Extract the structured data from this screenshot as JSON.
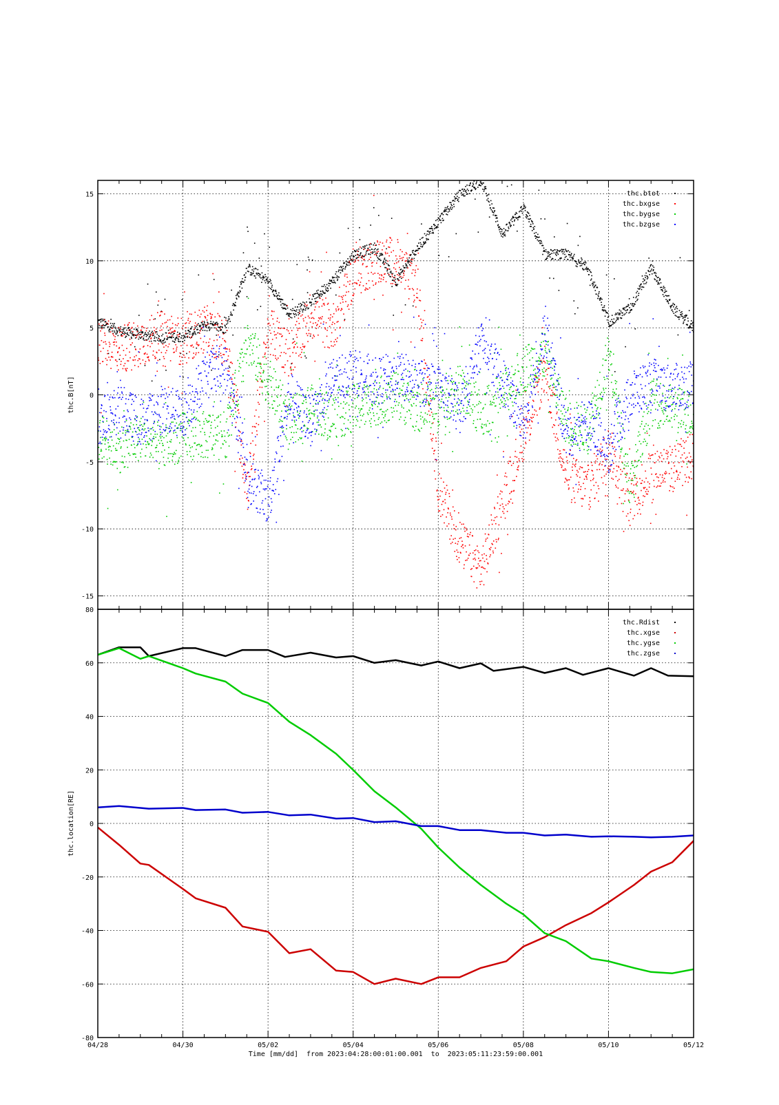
{
  "chart_data": [
    {
      "type": "scatter",
      "title": "",
      "ylabel": "thc.B[nT]",
      "xlabel": "",
      "ylim": [
        -16,
        16
      ],
      "yticks": [
        15,
        10,
        5,
        0,
        -5,
        -10,
        -15
      ],
      "xlim_day": [
        0,
        14
      ],
      "grid": true,
      "legend_position": "top-right",
      "series": [
        {
          "name": "thc.btot",
          "color": "#000000",
          "x": [
            0,
            0.5,
            1,
            1.5,
            2,
            2.5,
            3,
            3.5,
            4,
            4.5,
            5,
            5.5,
            6,
            6.5,
            7,
            7.5,
            8,
            8.5,
            9,
            9.5,
            10,
            10.5,
            11,
            11.5,
            12,
            12.5,
            13,
            13.5,
            14
          ],
          "y": [
            5.5,
            4.8,
            4.5,
            4.3,
            4.4,
            5.2,
            5.0,
            9.5,
            8.5,
            6.0,
            7.0,
            8.5,
            10.5,
            11.0,
            8.5,
            11.0,
            13.0,
            15.0,
            16.0,
            12.0,
            14.0,
            10.5,
            10.5,
            9.5,
            5.5,
            6.5,
            9.5,
            6.5,
            5.0
          ]
        },
        {
          "name": "thc.bxgse",
          "color": "#ff0000",
          "x": [
            0,
            0.5,
            1,
            1.5,
            2,
            2.5,
            3,
            3.5,
            4,
            4.5,
            5,
            5.5,
            6,
            6.5,
            7,
            7.5,
            8,
            8.5,
            9,
            9.5,
            10,
            10.5,
            11,
            11.5,
            12,
            12.5,
            13,
            13.5,
            14
          ],
          "y": [
            4.0,
            3.5,
            4.0,
            4.5,
            4.0,
            5.0,
            4.0,
            -7.0,
            5.0,
            3.0,
            6.0,
            5.0,
            9.0,
            10.0,
            10.0,
            8.0,
            -7.0,
            -11.0,
            -13.0,
            -8.0,
            -3.0,
            2.0,
            -6.0,
            -7.0,
            -4.0,
            -8.0,
            -5.5,
            -5.5,
            -4.5
          ]
        },
        {
          "name": "thc.bygse",
          "color": "#00cc00",
          "x": [
            0,
            0.5,
            1,
            1.5,
            2,
            2.5,
            3,
            3.5,
            4,
            4.5,
            5,
            5.5,
            6,
            6.5,
            7,
            7.5,
            8,
            8.5,
            9,
            9.5,
            10,
            10.5,
            11,
            11.5,
            12,
            12.5,
            13,
            13.5,
            14
          ],
          "y": [
            -3.0,
            -4.0,
            -3.0,
            -4.0,
            -3.0,
            -3.0,
            -3.0,
            4.0,
            1.0,
            -2.0,
            -1.0,
            -1.5,
            -1.0,
            -0.5,
            0.0,
            -1.0,
            -0.5,
            0.5,
            -1.5,
            0.0,
            2.0,
            3.0,
            -2.0,
            -2.5,
            3.0,
            -7.0,
            -0.5,
            -1.0,
            -1.5
          ]
        },
        {
          "name": "thc.bzgse",
          "color": "#0000ff",
          "x": [
            0,
            0.5,
            1,
            1.5,
            2,
            2.5,
            3,
            3.5,
            4,
            4.5,
            5,
            5.5,
            6,
            6.5,
            7,
            7.5,
            8,
            8.5,
            9,
            9.5,
            10,
            10.5,
            11,
            11.5,
            12,
            12.5,
            13,
            13.5,
            14
          ],
          "y": [
            -2.0,
            -1.0,
            -2.0,
            -1.0,
            -1.5,
            1.5,
            2.0,
            -6.0,
            -8.0,
            0.0,
            -2.0,
            1.0,
            2.0,
            1.0,
            1.5,
            1.0,
            0.5,
            -1.0,
            4.0,
            1.0,
            -2.0,
            5.0,
            -3.0,
            -2.0,
            -4.0,
            0.0,
            1.0,
            0.5,
            1.0
          ]
        }
      ]
    },
    {
      "type": "line",
      "title": "",
      "ylabel": "thc.location[RE]",
      "xlabel": "Time [mm/dd]  from 2023:04:28:00:01:00.001  to  2023:05:11:23:59:00.001",
      "ylim": [
        -80,
        80
      ],
      "yticks": [
        80,
        60,
        40,
        20,
        0,
        -20,
        -40,
        -60,
        -80
      ],
      "xlim_day": [
        0,
        14
      ],
      "xticks_day": [
        0,
        2,
        4,
        6,
        8,
        10,
        12,
        14
      ],
      "xtick_labels": [
        "04/28",
        "04/30",
        "05/02",
        "05/04",
        "05/06",
        "05/08",
        "05/10",
        "05/12"
      ],
      "grid": true,
      "legend_position": "top-right",
      "series": [
        {
          "name": "thc.Rdist",
          "color": "#000000",
          "x": [
            0,
            0.5,
            1,
            1.2,
            2,
            2.3,
            3,
            3.4,
            4,
            4.4,
            5,
            5.6,
            6,
            6.5,
            7,
            7.6,
            8,
            8.5,
            9,
            9.3,
            10,
            10.5,
            11,
            11.4,
            12,
            12.6,
            13,
            13.4,
            14
          ],
          "y": [
            63.0,
            65.8,
            65.8,
            62.5,
            65.5,
            65.5,
            62.5,
            64.8,
            64.8,
            62.2,
            63.8,
            62.0,
            62.5,
            60.0,
            61.0,
            59.0,
            60.5,
            58.0,
            59.8,
            57.0,
            58.5,
            56.2,
            58.0,
            55.5,
            58.0,
            55.2,
            58.0,
            55.2,
            55.0
          ]
        },
        {
          "name": "thc.xgse",
          "color": "#cc0000",
          "x": [
            0,
            0.5,
            1,
            1.2,
            2,
            2.3,
            3,
            3.4,
            4,
            4.5,
            5,
            5.6,
            6,
            6.5,
            7,
            7.6,
            8,
            8.5,
            9,
            9.6,
            10,
            10.5,
            11,
            11.6,
            12,
            12.6,
            13,
            13.5,
            14
          ],
          "y": [
            -1.5,
            -8.0,
            -15.0,
            -15.5,
            -24.5,
            -28.0,
            -31.5,
            -38.5,
            -40.5,
            -48.5,
            -47.0,
            -55.0,
            -55.5,
            -60.0,
            -58.0,
            -60.0,
            -57.5,
            -57.5,
            -54.0,
            -51.5,
            -46.0,
            -42.5,
            -38.0,
            -33.5,
            -29.5,
            -23.0,
            -18.0,
            -14.5,
            -6.5
          ]
        },
        {
          "name": "thc.ygse",
          "color": "#00cc00",
          "x": [
            0,
            0.5,
            1,
            1.2,
            2,
            2.3,
            3,
            3.4,
            4,
            4.5,
            5,
            5.6,
            6,
            6.5,
            7,
            7.6,
            8,
            8.5,
            9,
            9.6,
            10,
            10.5,
            11,
            11.6,
            12,
            12.6,
            13,
            13.5,
            14
          ],
          "y": [
            63.0,
            65.5,
            61.5,
            62.5,
            58.0,
            56.0,
            53.0,
            48.5,
            45.0,
            38.0,
            33.0,
            26.0,
            20.0,
            12.0,
            6.0,
            -2.0,
            -9.0,
            -16.5,
            -23.0,
            -30.0,
            -34.0,
            -41.0,
            -44.0,
            -50.5,
            -51.5,
            -54.0,
            -55.5,
            -56.0,
            -54.5
          ]
        },
        {
          "name": "thc.zgse",
          "color": "#0000cc",
          "x": [
            0,
            0.5,
            1,
            1.2,
            2,
            2.3,
            3,
            3.4,
            4,
            4.5,
            5,
            5.6,
            6,
            6.5,
            7,
            7.6,
            8,
            8.5,
            9,
            9.6,
            10,
            10.5,
            11,
            11.6,
            12,
            12.6,
            13,
            13.5,
            14
          ],
          "y": [
            6.0,
            6.5,
            5.8,
            5.5,
            5.8,
            5.0,
            5.2,
            4.0,
            4.3,
            3.0,
            3.3,
            1.8,
            2.0,
            0.5,
            0.8,
            -1.0,
            -1.0,
            -2.5,
            -2.5,
            -3.5,
            -3.5,
            -4.5,
            -4.2,
            -5.0,
            -4.8,
            -5.0,
            -5.2,
            -5.0,
            -4.5
          ]
        }
      ]
    }
  ]
}
